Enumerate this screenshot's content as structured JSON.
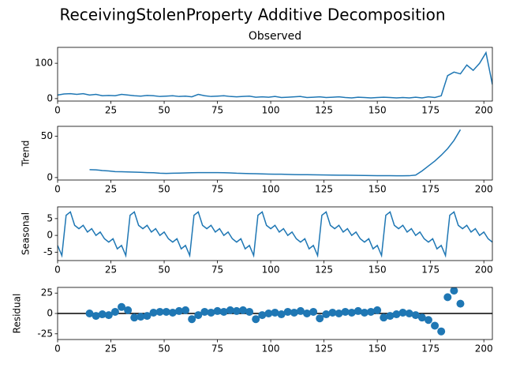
{
  "title": "ReceivingStolenProperty Additive Decomposition",
  "chart_data": [
    {
      "type": "line",
      "title": "Observed",
      "color": "#1f77b4",
      "x": [
        0,
        3,
        6,
        9,
        12,
        15,
        18,
        21,
        24,
        27,
        30,
        33,
        36,
        39,
        42,
        45,
        48,
        51,
        54,
        57,
        60,
        63,
        66,
        69,
        72,
        75,
        78,
        81,
        84,
        87,
        90,
        93,
        96,
        99,
        102,
        105,
        108,
        111,
        114,
        117,
        120,
        123,
        126,
        129,
        132,
        135,
        138,
        141,
        144,
        147,
        150,
        153,
        156,
        159,
        162,
        165,
        168,
        171,
        174,
        177,
        180,
        183,
        186,
        189,
        192,
        195,
        198,
        201,
        204
      ],
      "values": [
        10,
        13,
        14,
        12,
        14,
        10,
        12,
        8,
        9,
        8,
        12,
        10,
        8,
        7,
        9,
        8,
        6,
        7,
        8,
        6,
        7,
        5,
        12,
        8,
        6,
        7,
        8,
        6,
        5,
        6,
        7,
        4,
        5,
        4,
        6,
        3,
        4,
        5,
        6,
        3,
        4,
        5,
        3,
        4,
        5,
        3,
        2,
        4,
        3,
        2,
        3,
        4,
        3,
        2,
        3,
        2,
        4,
        2,
        5,
        3,
        8,
        65,
        75,
        70,
        95,
        80,
        100,
        130,
        40
      ],
      "xlim": [
        0,
        204
      ],
      "xticks": [
        0,
        25,
        50,
        75,
        100,
        125,
        150,
        175,
        200
      ],
      "ylim": [
        -7,
        145
      ],
      "yticks": [
        0,
        100
      ]
    },
    {
      "type": "line",
      "ylabel": "Trend",
      "color": "#1f77b4",
      "x": [
        0,
        3,
        6,
        9,
        12,
        15,
        18,
        21,
        24,
        27,
        30,
        33,
        36,
        39,
        42,
        45,
        48,
        51,
        54,
        57,
        60,
        63,
        66,
        69,
        72,
        75,
        78,
        81,
        84,
        87,
        90,
        93,
        96,
        99,
        102,
        105,
        108,
        111,
        114,
        117,
        120,
        123,
        126,
        129,
        132,
        135,
        138,
        141,
        144,
        147,
        150,
        153,
        156,
        159,
        162,
        165,
        168,
        171,
        174,
        177,
        180,
        183,
        186,
        189,
        192,
        195,
        198,
        201,
        204
      ],
      "values": [
        null,
        null,
        null,
        null,
        null,
        9.5,
        9.3,
        8.5,
        8,
        7.2,
        7,
        6.8,
        6.5,
        6.3,
        6,
        5.8,
        5.2,
        5,
        5.2,
        5.4,
        5.6,
        5.8,
        6,
        6,
        6,
        6,
        5.9,
        5.6,
        5.2,
        5,
        4.8,
        4.6,
        4.4,
        4.2,
        4,
        4,
        3.8,
        3.6,
        3.5,
        3.4,
        3.3,
        3.2,
        3.1,
        3,
        2.9,
        2.8,
        2.7,
        2.6,
        2.5,
        2.4,
        2.3,
        2.2,
        2.2,
        2.1,
        2.1,
        2.2,
        3,
        8,
        14,
        20,
        27,
        35,
        45,
        58,
        null,
        null,
        null,
        null,
        null
      ],
      "xlim": [
        0,
        204
      ],
      "xticks": [
        0,
        25,
        50,
        75,
        100,
        125,
        150,
        175,
        200
      ],
      "ylim": [
        -3,
        62
      ],
      "yticks": [
        0,
        50
      ]
    },
    {
      "type": "line",
      "ylabel": "Seasonal",
      "color": "#1f77b4",
      "x": [
        0,
        2,
        4,
        6,
        8,
        10,
        12,
        14,
        16,
        18,
        20,
        22,
        24,
        26,
        28,
        30,
        32,
        34,
        36,
        38,
        40,
        42,
        44,
        46,
        48,
        50,
        52,
        54,
        56,
        58,
        60,
        62,
        64,
        66,
        68,
        70,
        72,
        74,
        76,
        78,
        80,
        82,
        84,
        86,
        88,
        90,
        92,
        94,
        96,
        98,
        100,
        102,
        104,
        106,
        108,
        110,
        112,
        114,
        116,
        118,
        120,
        122,
        124,
        126,
        128,
        130,
        132,
        134,
        136,
        138,
        140,
        142,
        144,
        146,
        148,
        150,
        152,
        154,
        156,
        158,
        160,
        162,
        164,
        166,
        168,
        170,
        172,
        174,
        176,
        178,
        180,
        182,
        184,
        186,
        188,
        190,
        192,
        194,
        196,
        198,
        200,
        202,
        204
      ],
      "values": [
        -3,
        -6,
        6,
        7,
        3,
        2,
        3,
        1,
        2,
        0,
        1,
        -1,
        -2,
        -1,
        -4,
        -3,
        -6,
        6,
        7,
        3,
        2,
        3,
        1,
        2,
        0,
        1,
        -1,
        -2,
        -1,
        -4,
        -3,
        -6,
        6,
        7,
        3,
        2,
        3,
        1,
        2,
        0,
        1,
        -1,
        -2,
        -1,
        -4,
        -3,
        -6,
        6,
        7,
        3,
        2,
        3,
        1,
        2,
        0,
        1,
        -1,
        -2,
        -1,
        -4,
        -3,
        -6,
        6,
        7,
        3,
        2,
        3,
        1,
        2,
        0,
        1,
        -1,
        -2,
        -1,
        -4,
        -3,
        -6,
        6,
        7,
        3,
        2,
        3,
        1,
        2,
        0,
        1,
        -1,
        -2,
        -1,
        -4,
        -3,
        -6,
        6,
        7,
        3,
        2,
        3,
        1,
        2,
        0,
        1,
        -1,
        -2
      ],
      "xlim": [
        0,
        204
      ],
      "xticks": [
        0,
        25,
        50,
        75,
        100,
        125,
        150,
        175,
        200
      ],
      "ylim": [
        -7.5,
        8.5
      ],
      "yticks": [
        -5,
        0,
        5
      ]
    },
    {
      "type": "scatter",
      "ylabel": "Residual",
      "color": "#1f77b4",
      "x": [
        15,
        18,
        21,
        24,
        27,
        30,
        33,
        36,
        39,
        42,
        45,
        48,
        51,
        54,
        57,
        60,
        63,
        66,
        69,
        72,
        75,
        78,
        81,
        84,
        87,
        90,
        93,
        96,
        99,
        102,
        105,
        108,
        111,
        114,
        117,
        120,
        123,
        126,
        129,
        132,
        135,
        138,
        141,
        144,
        147,
        150,
        153,
        156,
        159,
        162,
        165,
        168,
        171,
        174,
        177,
        180,
        183,
        186,
        189
      ],
      "values": [
        0,
        -3,
        -1,
        -2,
        2,
        8,
        4,
        -5,
        -4,
        -3,
        1,
        2,
        2,
        1,
        3,
        4,
        -7,
        -2,
        2,
        1,
        3,
        2,
        4,
        3,
        4,
        2,
        -7,
        -2,
        0,
        1,
        -1,
        2,
        1,
        3,
        0,
        2,
        -6,
        -1,
        1,
        0,
        2,
        1,
        3,
        1,
        2,
        4,
        -5,
        -3,
        -1,
        1,
        0,
        -2,
        -5,
        -8,
        -15,
        -22,
        20,
        28,
        12
      ],
      "xlim": [
        0,
        204
      ],
      "xticks": [
        0,
        25,
        50,
        75,
        100,
        125,
        150,
        175,
        200
      ],
      "ylim": [
        -32,
        32
      ],
      "yticks": [
        -25,
        0,
        25
      ]
    }
  ]
}
